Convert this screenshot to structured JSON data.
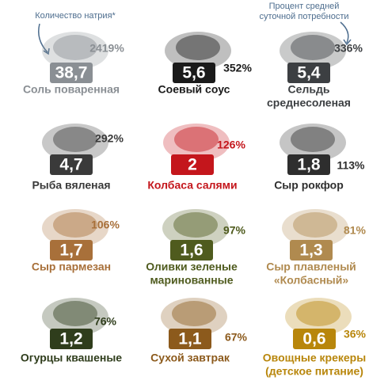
{
  "annotations": {
    "sodium": "Количество натрия*",
    "daily": [
      "Процент средней",
      "суточной потребности"
    ]
  },
  "items": [
    {
      "name": [
        "Соль поваренная"
      ],
      "value": "38,7",
      "percent": "2419%",
      "color": "#8a8f94"
    },
    {
      "name": [
        "Соевый соус"
      ],
      "value": "5,6",
      "percent": "352%",
      "color": "#1a1a1a"
    },
    {
      "name": [
        "Сельдь",
        "среднесоленая"
      ],
      "value": "5,4",
      "percent": "336%",
      "color": "#3c3f42"
    },
    {
      "name": [
        "Рыба вяленая"
      ],
      "value": "4,7",
      "percent": "292%",
      "color": "#3a3a3a"
    },
    {
      "name": [
        "Колбаса салями"
      ],
      "value": "2",
      "percent": "126%",
      "color": "#c4161c"
    },
    {
      "name": [
        "Сыр рокфор"
      ],
      "value": "1,8",
      "percent": "113%",
      "color": "#2e2e2e"
    },
    {
      "name": [
        "Сыр пармезан"
      ],
      "value": "1,7",
      "percent": "106%",
      "color": "#a8703a"
    },
    {
      "name": [
        "Оливки зеленые",
        "маринованные"
      ],
      "value": "1,6",
      "percent": "97%",
      "color": "#4f5b1e"
    },
    {
      "name": [
        "Сыр плавленый",
        "«Колбасный»"
      ],
      "value": "1,3",
      "percent": "81%",
      "color": "#b08a4f"
    },
    {
      "name": [
        "Огурцы квашеные"
      ],
      "value": "1,2",
      "percent": "76%",
      "color": "#2f3d1c"
    },
    {
      "name": [
        "Сухой завтрак"
      ],
      "value": "1,1",
      "percent": "67%",
      "color": "#8c5a1c"
    },
    {
      "name": [
        "Овощные крекеры",
        "(детское питание)"
      ],
      "value": "0,6",
      "percent": "36%",
      "color": "#b8860b"
    }
  ]
}
